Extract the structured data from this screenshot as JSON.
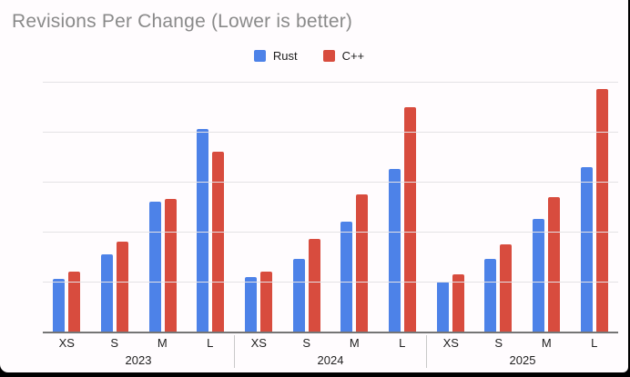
{
  "chart_data": {
    "type": "bar",
    "title": "Revisions Per Change (Lower is better)",
    "categories": [
      "XS",
      "S",
      "M",
      "L"
    ],
    "series": [
      {
        "name": "Rust",
        "color": "#4d82e8"
      },
      {
        "name": "C++",
        "color": "#d84c3e"
      }
    ],
    "groups": [
      {
        "label": "2023",
        "series_values": [
          [
            1.05,
            1.55,
            2.6,
            4.05
          ],
          [
            1.2,
            1.8,
            2.65,
            3.6
          ]
        ]
      },
      {
        "label": "2024",
        "series_values": [
          [
            1.1,
            1.45,
            2.2,
            3.25
          ],
          [
            1.2,
            1.85,
            2.75,
            4.5
          ]
        ]
      },
      {
        "label": "2025",
        "series_values": [
          [
            1.0,
            1.45,
            2.25,
            3.3
          ],
          [
            1.15,
            1.75,
            2.7,
            4.85
          ]
        ]
      }
    ],
    "xlabel": "",
    "ylabel": "",
    "ylim": [
      0,
      5
    ],
    "gridline_count": 5,
    "y_axis_labels_visible": false,
    "grid": true,
    "legend_position": "top"
  }
}
